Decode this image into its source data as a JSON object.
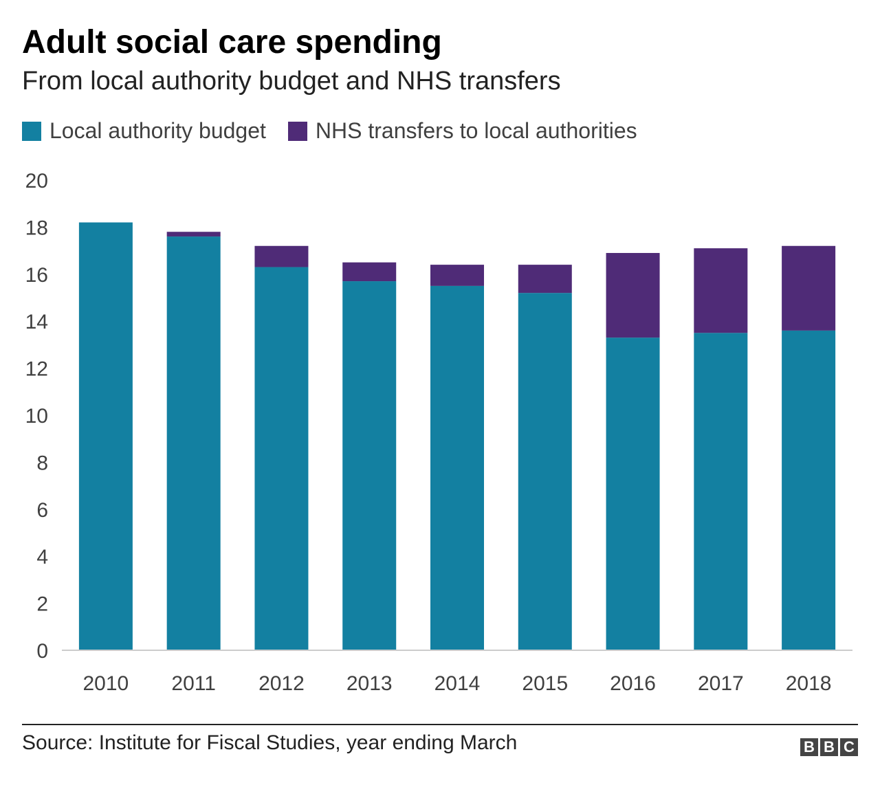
{
  "chart_data": {
    "type": "bar",
    "stacked": true,
    "title": "Adult social care spending",
    "subtitle": "From local authority budget and NHS transfers",
    "categories": [
      "2010",
      "2011",
      "2012",
      "2013",
      "2014",
      "2015",
      "2016",
      "2017",
      "2018"
    ],
    "series": [
      {
        "name": "Local authority budget",
        "color": "#1380A1",
        "values": [
          18.2,
          17.6,
          16.3,
          15.7,
          15.5,
          15.2,
          13.3,
          13.5,
          13.6
        ]
      },
      {
        "name": "NHS transfers to local authorities",
        "color": "#4F2B77",
        "values": [
          0.0,
          0.2,
          0.9,
          0.8,
          0.9,
          1.2,
          3.6,
          3.6,
          3.6
        ]
      }
    ],
    "yticks": [
      "0",
      "2",
      "4",
      "6",
      "8",
      "10",
      "12",
      "14",
      "16",
      "18",
      "20"
    ],
    "ylim": [
      0,
      20
    ],
    "xlabel": "",
    "ylabel": "",
    "legend_position": "top-left",
    "grid": false
  },
  "footer": {
    "source": "Source: Institute for Fiscal Studies, year ending March",
    "logo_letters": [
      "B",
      "B",
      "C"
    ]
  }
}
